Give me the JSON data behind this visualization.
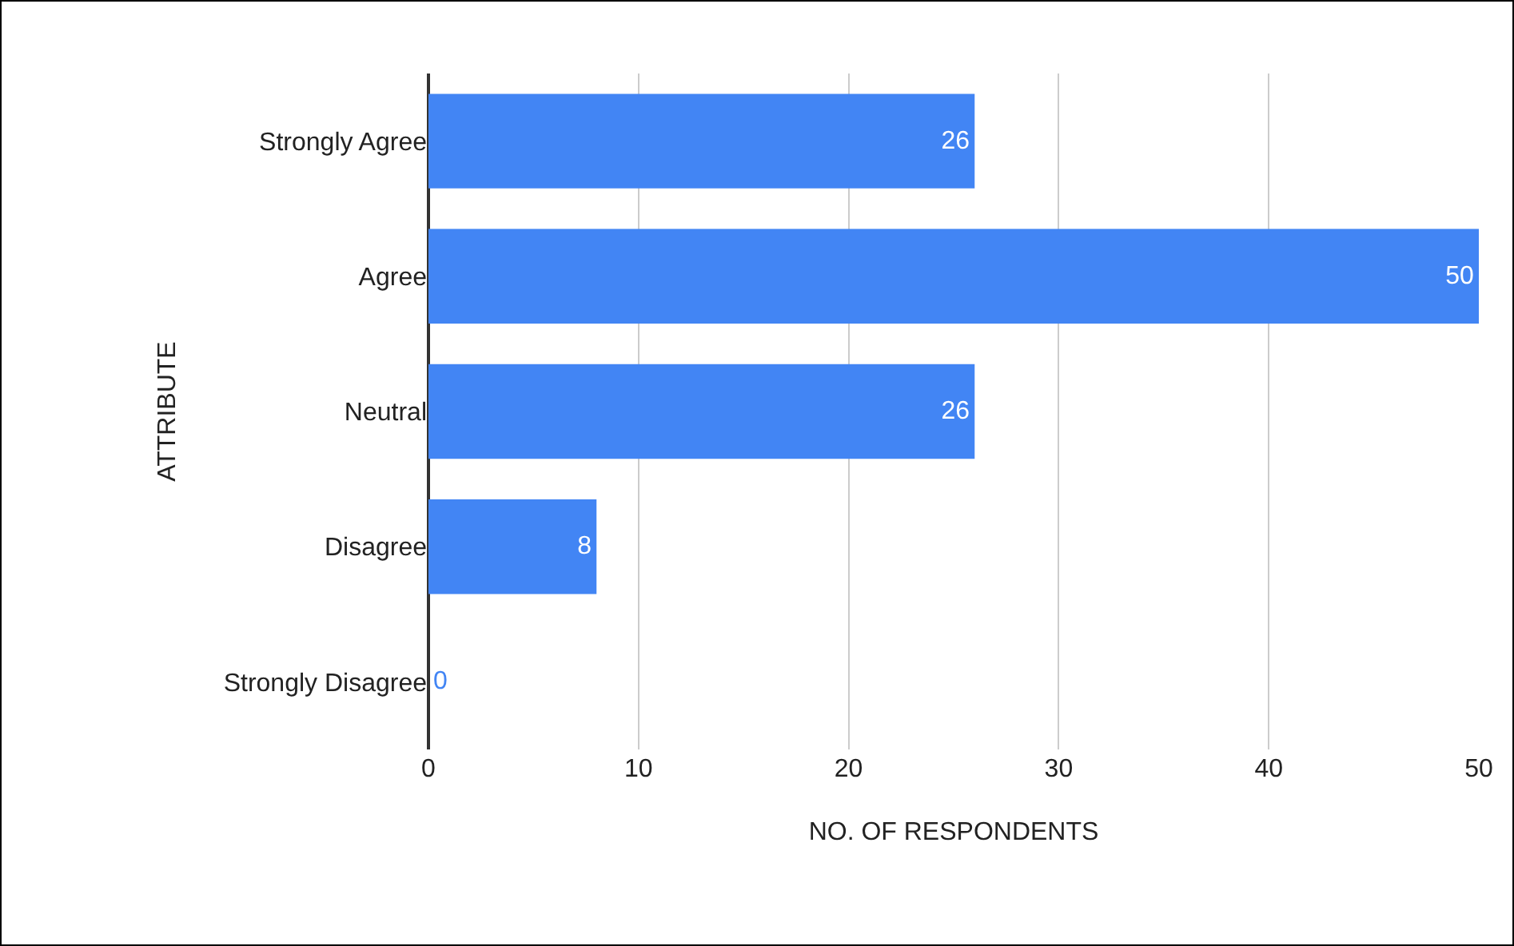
{
  "chart_data": {
    "type": "bar",
    "orientation": "horizontal",
    "xlabel": "NO. OF RESPONDENTS",
    "ylabel": "ATTRIBUTE",
    "categories": [
      "Strongly Agree",
      "Agree",
      "Neutral",
      "Disagree",
      "Strongly Disagree"
    ],
    "values": [
      26,
      50,
      26,
      8,
      0
    ],
    "color": "#4285f4",
    "xlim": [
      0,
      50
    ],
    "xticks": [
      0,
      10,
      20,
      30,
      40,
      50
    ],
    "grid": "x",
    "data_labels": true
  }
}
